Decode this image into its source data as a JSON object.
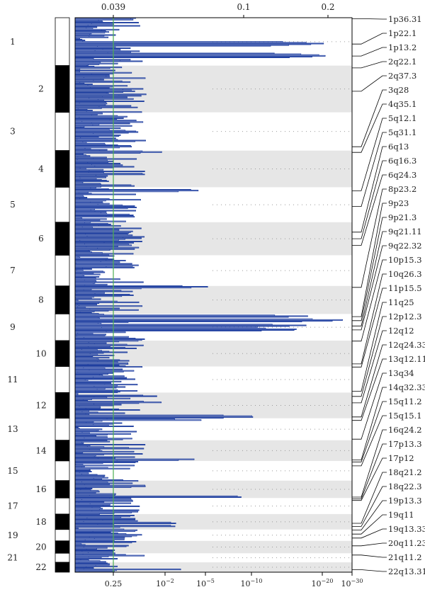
{
  "chart_data": {
    "type": "line",
    "title": "",
    "xlabel": "",
    "ylabel": "",
    "x_scale": "log-reversed",
    "x_range_q": [
      1,
      1e-30
    ],
    "top_axis": {
      "ticks": [
        0.039,
        0.1,
        0.2
      ],
      "tick_labels": [
        "0.039",
        "0.1",
        "0.2"
      ]
    },
    "bottom_axis": {
      "ticks": [
        0.25,
        0.01,
        1e-05,
        1e-10,
        1e-20,
        1e-30
      ],
      "tick_labels": [
        "0.25",
        "10^-2",
        "10^-5",
        "10^-10",
        "10^-20",
        "10^-30"
      ]
    },
    "significance_threshold_q": 0.25,
    "threshold_color": "#4caf50",
    "series_color": "#1f3fa0",
    "band_color": "#e6e6e6",
    "chromosomes": [
      "1",
      "2",
      "3",
      "4",
      "5",
      "6",
      "7",
      "8",
      "9",
      "10",
      "11",
      "12",
      "13",
      "14",
      "15",
      "16",
      "17",
      "18",
      "19",
      "20",
      "21",
      "22"
    ],
    "chromosome_size_rel": [
      248,
      242,
      198,
      190,
      181,
      171,
      159,
      145,
      138,
      134,
      135,
      133,
      114,
      107,
      102,
      90,
      83,
      80,
      59,
      64,
      47,
      51
    ],
    "peaks": [
      {
        "label": "1p36.31",
        "chrom": "1",
        "pos": 0.02,
        "q": 0.05
      },
      {
        "label": "1p22.1",
        "chrom": "1",
        "pos": 0.55,
        "q": 1e-22
      },
      {
        "label": "1p13.2",
        "chrom": "1",
        "pos": 0.8,
        "q": 1e-23
      },
      {
        "label": "2q22.1",
        "chrom": "2",
        "pos": 0.05,
        "q": 0.8
      },
      {
        "label": "2q37.3",
        "chrom": "2",
        "pos": 0.55,
        "q": 0.05
      },
      {
        "label": "3q28",
        "chrom": "3",
        "pos": 0.9,
        "q": 0.05
      },
      {
        "label": "4q35.1",
        "chrom": "4",
        "pos": 0.05,
        "q": 0.01
      },
      {
        "label": "5q12.1",
        "chrom": "5",
        "pos": 0.1,
        "q": 1e-05
      },
      {
        "label": "5q31.1",
        "chrom": "5",
        "pos": 0.55,
        "q": 0.05
      },
      {
        "label": "6q13",
        "chrom": "6",
        "pos": 0.3,
        "q": 0.05
      },
      {
        "label": "6q16.3",
        "chrom": "6",
        "pos": 0.5,
        "q": 0.05
      },
      {
        "label": "6q24.3",
        "chrom": "6",
        "pos": 0.7,
        "q": 0.05
      },
      {
        "label": "8p23.2",
        "chrom": "8",
        "pos": 0.05,
        "q": 1e-06
      },
      {
        "label": "9p23",
        "chrom": "9",
        "pos": 0.1,
        "q": 1e-20
      },
      {
        "label": "9p21.3",
        "chrom": "9",
        "pos": 0.25,
        "q": 1e-30
      },
      {
        "label": "9q21.11",
        "chrom": "9",
        "pos": 0.45,
        "q": 1e-20
      },
      {
        "label": "9q22.32",
        "chrom": "9",
        "pos": 0.6,
        "q": 1e-20
      },
      {
        "label": "10p15.3",
        "chrom": "10",
        "pos": 0.02,
        "q": 0.05
      },
      {
        "label": "10q26.3",
        "chrom": "10",
        "pos": 0.9,
        "q": 0.05
      },
      {
        "label": "11p15.5",
        "chrom": "11",
        "pos": 0.02,
        "q": 0.05
      },
      {
        "label": "11q25",
        "chrom": "11",
        "pos": 0.95,
        "q": 0.05
      },
      {
        "label": "12p12.3",
        "chrom": "12",
        "pos": 0.15,
        "q": 0.01
      },
      {
        "label": "12q12",
        "chrom": "12",
        "pos": 0.4,
        "q": 0.01
      },
      {
        "label": "12q24.33",
        "chrom": "12",
        "pos": 0.95,
        "q": 1e-12
      },
      {
        "label": "13q12.11",
        "chrom": "13",
        "pos": 0.1,
        "q": 1e-05
      },
      {
        "label": "13q34",
        "chrom": "13",
        "pos": 0.95,
        "q": 0.05
      },
      {
        "label": "14q32.33",
        "chrom": "14",
        "pos": 0.95,
        "q": 1e-05
      },
      {
        "label": "15q11.2",
        "chrom": "15",
        "pos": 0.05,
        "q": 0.05
      },
      {
        "label": "15q15.1",
        "chrom": "15",
        "pos": 0.25,
        "q": 0.05
      },
      {
        "label": "16q24.2",
        "chrom": "16",
        "pos": 0.95,
        "q": 1e-11
      },
      {
        "label": "17p13.3",
        "chrom": "17",
        "pos": 0.05,
        "q": 0.05
      },
      {
        "label": "17p12",
        "chrom": "17",
        "pos": 0.15,
        "q": 0.05
      },
      {
        "label": "18q21.2",
        "chrom": "18",
        "pos": 0.6,
        "q": 0.0001
      },
      {
        "label": "18q22.3",
        "chrom": "18",
        "pos": 0.8,
        "q": 0.0001
      },
      {
        "label": "19p13.3",
        "chrom": "19",
        "pos": 0.05,
        "q": 0.05
      },
      {
        "label": "19q11",
        "chrom": "19",
        "pos": 0.4,
        "q": 0.05
      },
      {
        "label": "19q13.33",
        "chrom": "19",
        "pos": 0.75,
        "q": 0.05
      },
      {
        "label": "20q11.23",
        "chrom": "20",
        "pos": 0.4,
        "q": 0.05
      },
      {
        "label": "21q11.2",
        "chrom": "21",
        "pos": 0.2,
        "q": 0.05
      },
      {
        "label": "22q13.31",
        "chrom": "22",
        "pos": 0.75,
        "q": 0.0001
      }
    ]
  }
}
